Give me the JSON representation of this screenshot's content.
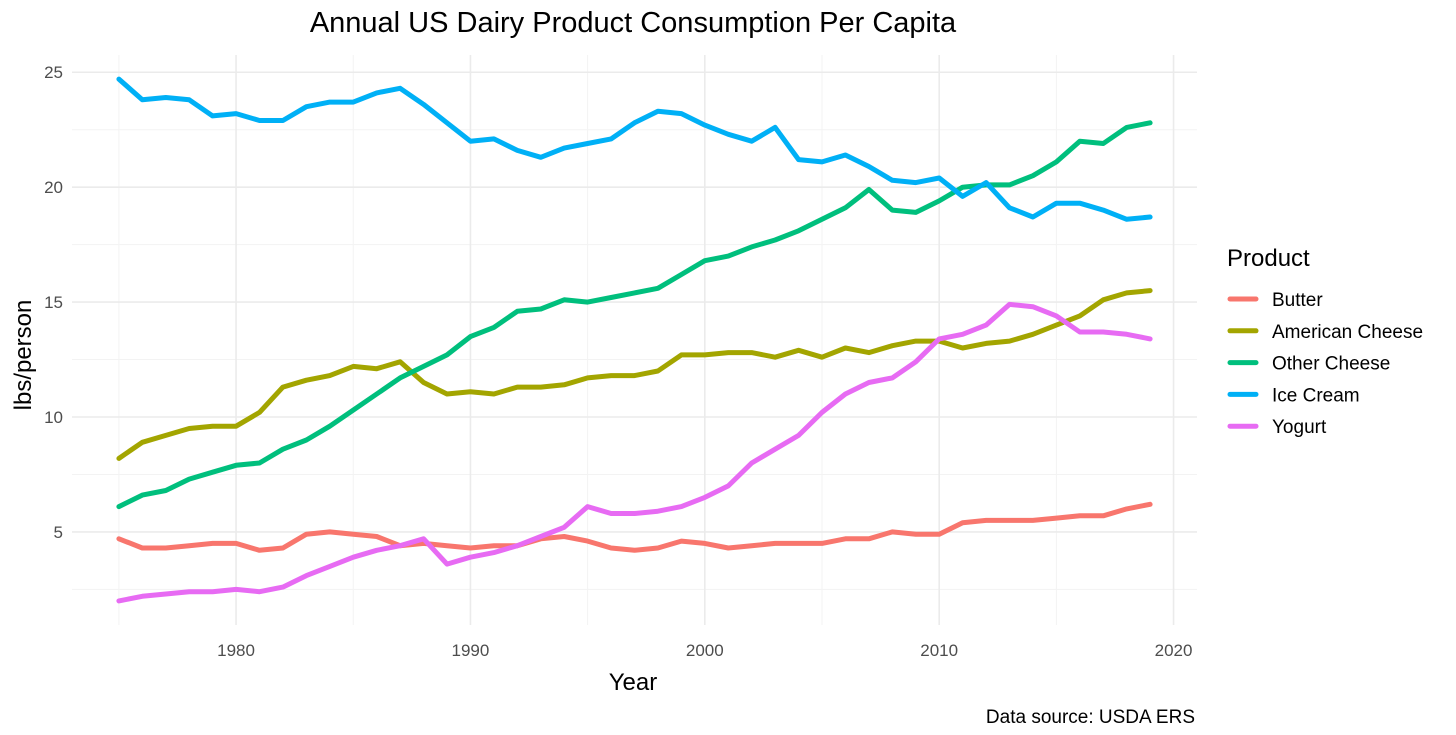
{
  "chart_data": {
    "type": "line",
    "title": "Annual US Dairy Product Consumption Per Capita",
    "xlabel": "Year",
    "ylabel": "lbs/person",
    "caption": "Data source: USDA ERS",
    "xlim": [
      1975,
      2019
    ],
    "ylim": [
      2,
      24.7
    ],
    "x_ticks": [
      1980,
      1990,
      2000,
      2010,
      2020
    ],
    "y_ticks": [
      5,
      10,
      15,
      20,
      25
    ],
    "grid": true,
    "legend": {
      "title": "Product",
      "position": "right"
    },
    "x": [
      1975,
      1976,
      1977,
      1978,
      1979,
      1980,
      1981,
      1982,
      1983,
      1984,
      1985,
      1986,
      1987,
      1988,
      1989,
      1990,
      1991,
      1992,
      1993,
      1994,
      1995,
      1996,
      1997,
      1998,
      1999,
      2000,
      2001,
      2002,
      2003,
      2004,
      2005,
      2006,
      2007,
      2008,
      2009,
      2010,
      2011,
      2012,
      2013,
      2014,
      2015,
      2016,
      2017,
      2018,
      2019
    ],
    "series": [
      {
        "name": "Butter",
        "color": "#F8766D",
        "values": [
          4.7,
          4.3,
          4.3,
          4.4,
          4.5,
          4.5,
          4.2,
          4.3,
          4.9,
          5.0,
          4.9,
          4.8,
          4.4,
          4.5,
          4.4,
          4.3,
          4.4,
          4.4,
          4.7,
          4.8,
          4.6,
          4.3,
          4.2,
          4.3,
          4.6,
          4.5,
          4.3,
          4.4,
          4.5,
          4.5,
          4.5,
          4.7,
          4.7,
          5.0,
          4.9,
          4.9,
          5.4,
          5.5,
          5.5,
          5.5,
          5.6,
          5.7,
          5.7,
          6.0,
          6.2
        ]
      },
      {
        "name": "American Cheese",
        "color": "#A3A500",
        "values": [
          8.2,
          8.9,
          9.2,
          9.5,
          9.6,
          9.6,
          10.2,
          11.3,
          11.6,
          11.8,
          12.2,
          12.1,
          12.4,
          11.5,
          11.0,
          11.1,
          11.0,
          11.3,
          11.3,
          11.4,
          11.7,
          11.8,
          11.8,
          12.0,
          12.7,
          12.7,
          12.8,
          12.8,
          12.6,
          12.9,
          12.6,
          13.0,
          12.8,
          13.1,
          13.3,
          13.3,
          13.0,
          13.2,
          13.3,
          13.6,
          14.0,
          14.4,
          15.1,
          15.4,
          15.5
        ]
      },
      {
        "name": "Other Cheese",
        "color": "#00BF7D",
        "values": [
          6.1,
          6.6,
          6.8,
          7.3,
          7.6,
          7.9,
          8.0,
          8.6,
          9.0,
          9.6,
          10.3,
          11.0,
          11.7,
          12.2,
          12.7,
          13.5,
          13.9,
          14.6,
          14.7,
          15.1,
          15.0,
          15.2,
          15.4,
          15.6,
          16.2,
          16.8,
          17.0,
          17.4,
          17.7,
          18.1,
          18.6,
          19.1,
          19.9,
          19.0,
          18.9,
          19.4,
          20.0,
          20.1,
          20.1,
          20.5,
          21.1,
          22.0,
          21.9,
          22.6,
          22.8
        ]
      },
      {
        "name": "Ice Cream",
        "color": "#00B0F6",
        "values": [
          24.7,
          23.8,
          23.9,
          23.8,
          23.1,
          23.2,
          22.9,
          22.9,
          23.5,
          23.7,
          23.7,
          24.1,
          24.3,
          23.6,
          22.8,
          22.0,
          22.1,
          21.6,
          21.3,
          21.7,
          21.9,
          22.1,
          22.8,
          23.3,
          23.2,
          22.7,
          22.3,
          22.0,
          22.6,
          21.2,
          21.1,
          21.4,
          20.9,
          20.3,
          20.2,
          20.4,
          19.6,
          20.2,
          19.1,
          18.7,
          19.3,
          19.3,
          19.0,
          18.6,
          18.7
        ]
      },
      {
        "name": "Yogurt",
        "color": "#E76BF3",
        "values": [
          2.0,
          2.2,
          2.3,
          2.4,
          2.4,
          2.5,
          2.4,
          2.6,
          3.1,
          3.5,
          3.9,
          4.2,
          4.4,
          4.7,
          3.6,
          3.9,
          4.1,
          4.4,
          4.8,
          5.2,
          6.1,
          5.8,
          5.8,
          5.9,
          6.1,
          6.5,
          7.0,
          8.0,
          8.6,
          9.2,
          10.2,
          11.0,
          11.5,
          11.7,
          12.4,
          13.4,
          13.6,
          14.0,
          14.9,
          14.8,
          14.4,
          13.7,
          13.7,
          13.6,
          13.4
        ]
      }
    ]
  }
}
